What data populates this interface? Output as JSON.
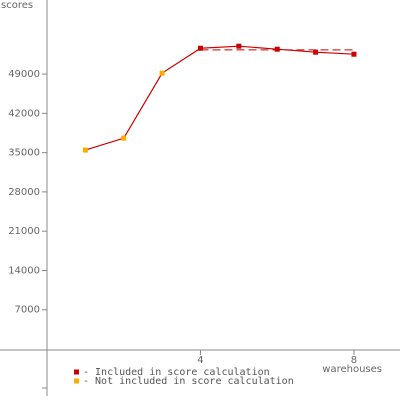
{
  "chart_data": {
    "type": "line",
    "y_label": "scores",
    "x_label": "warehouses",
    "x": [
      1,
      2,
      3,
      4,
      5,
      6,
      7,
      8
    ],
    "values": [
      35450,
      37580,
      49160,
      53600,
      53970,
      53430,
      52900,
      52540
    ],
    "line_color": "#cc0000",
    "legend": [
      {
        "name": "- Included in score calculation",
        "color": "#cc0000"
      },
      {
        "name": "- Not included in score calculation",
        "color": "#ffaa00"
      }
    ],
    "point_legend": [
      1,
      1,
      1,
      0,
      0,
      0,
      0,
      0
    ],
    "score_line": {
      "value": 53300,
      "from": 4,
      "to": 8
    },
    "xlim": [
      0,
      9.2
    ],
    "ylim": [
      -8200,
      62200
    ],
    "xticks": [
      4,
      8
    ],
    "yticks": [
      7000,
      14000,
      21000,
      28000,
      35000,
      42000,
      49000
    ]
  }
}
